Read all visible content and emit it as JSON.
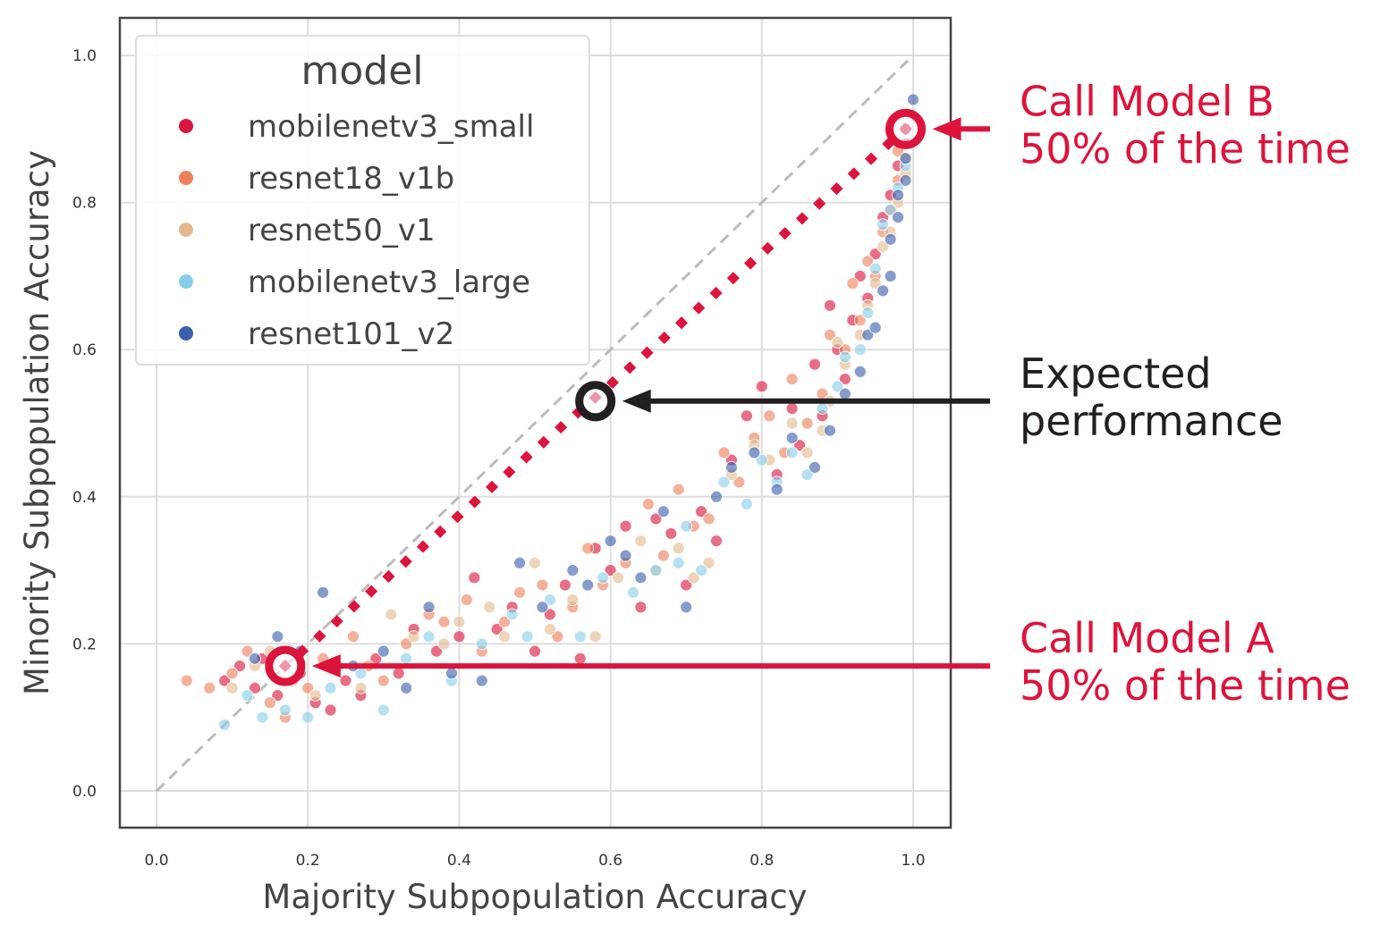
{
  "chart_data": {
    "type": "scatter",
    "xlabel": "Majority Subpopulation Accuracy",
    "ylabel": "Minority Subpopulation Accuracy",
    "xlim": [
      -0.05,
      1.05
    ],
    "ylim": [
      -0.05,
      1.05
    ],
    "xticks": [
      "0.0",
      "0.2",
      "0.4",
      "0.6",
      "0.8",
      "1.0"
    ],
    "yticks": [
      "0.0",
      "0.2",
      "0.4",
      "0.6",
      "0.8",
      "1.0"
    ],
    "grid": true,
    "legend": {
      "title": "model",
      "placement": "top-left"
    },
    "series": [
      {
        "name": "mobilenetv3_small",
        "color": "#dc143c",
        "points": [
          [
            0.09,
            0.15
          ],
          [
            0.11,
            0.17
          ],
          [
            0.13,
            0.14
          ],
          [
            0.14,
            0.18
          ],
          [
            0.16,
            0.13
          ],
          [
            0.19,
            0.16
          ],
          [
            0.21,
            0.12
          ],
          [
            0.23,
            0.11
          ],
          [
            0.25,
            0.15
          ],
          [
            0.27,
            0.13
          ],
          [
            0.29,
            0.18
          ],
          [
            0.32,
            0.16
          ],
          [
            0.34,
            0.22
          ],
          [
            0.37,
            0.19
          ],
          [
            0.4,
            0.21
          ],
          [
            0.42,
            0.29
          ],
          [
            0.45,
            0.22
          ],
          [
            0.47,
            0.25
          ],
          [
            0.5,
            0.19
          ],
          [
            0.52,
            0.24
          ],
          [
            0.54,
            0.28
          ],
          [
            0.56,
            0.18
          ],
          [
            0.58,
            0.33
          ],
          [
            0.6,
            0.3
          ],
          [
            0.62,
            0.36
          ],
          [
            0.64,
            0.25
          ],
          [
            0.66,
            0.37
          ],
          [
            0.68,
            0.35
          ],
          [
            0.7,
            0.28
          ],
          [
            0.72,
            0.38
          ],
          [
            0.74,
            0.34
          ],
          [
            0.76,
            0.45
          ],
          [
            0.78,
            0.51
          ],
          [
            0.8,
            0.55
          ],
          [
            0.82,
            0.43
          ],
          [
            0.84,
            0.52
          ],
          [
            0.85,
            0.47
          ],
          [
            0.87,
            0.58
          ],
          [
            0.88,
            0.51
          ],
          [
            0.89,
            0.66
          ],
          [
            0.9,
            0.6
          ],
          [
            0.91,
            0.56
          ],
          [
            0.92,
            0.64
          ],
          [
            0.93,
            0.7
          ],
          [
            0.94,
            0.67
          ],
          [
            0.95,
            0.73
          ],
          [
            0.96,
            0.78
          ],
          [
            0.97,
            0.81
          ],
          [
            0.98,
            0.85
          ],
          [
            0.99,
            0.88
          ]
        ]
      },
      {
        "name": "resnet18_v1b",
        "color": "#ef7f5b",
        "points": [
          [
            0.04,
            0.15
          ],
          [
            0.07,
            0.14
          ],
          [
            0.1,
            0.16
          ],
          [
            0.12,
            0.19
          ],
          [
            0.15,
            0.12
          ],
          [
            0.17,
            0.1
          ],
          [
            0.2,
            0.14
          ],
          [
            0.22,
            0.18
          ],
          [
            0.26,
            0.21
          ],
          [
            0.28,
            0.17
          ],
          [
            0.3,
            0.15
          ],
          [
            0.33,
            0.2
          ],
          [
            0.36,
            0.24
          ],
          [
            0.38,
            0.23
          ],
          [
            0.41,
            0.26
          ],
          [
            0.43,
            0.19
          ],
          [
            0.46,
            0.23
          ],
          [
            0.48,
            0.27
          ],
          [
            0.51,
            0.28
          ],
          [
            0.53,
            0.21
          ],
          [
            0.55,
            0.25
          ],
          [
            0.57,
            0.33
          ],
          [
            0.59,
            0.28
          ],
          [
            0.62,
            0.31
          ],
          [
            0.65,
            0.39
          ],
          [
            0.67,
            0.32
          ],
          [
            0.69,
            0.41
          ],
          [
            0.71,
            0.36
          ],
          [
            0.73,
            0.37
          ],
          [
            0.75,
            0.46
          ],
          [
            0.77,
            0.42
          ],
          [
            0.79,
            0.48
          ],
          [
            0.81,
            0.51
          ],
          [
            0.83,
            0.46
          ],
          [
            0.84,
            0.56
          ],
          [
            0.86,
            0.5
          ],
          [
            0.88,
            0.54
          ],
          [
            0.89,
            0.62
          ],
          [
            0.91,
            0.6
          ],
          [
            0.92,
            0.69
          ],
          [
            0.93,
            0.64
          ],
          [
            0.94,
            0.72
          ],
          [
            0.95,
            0.7
          ],
          [
            0.96,
            0.76
          ],
          [
            0.97,
            0.79
          ],
          [
            0.98,
            0.83
          ],
          [
            0.98,
            0.87
          ],
          [
            0.99,
            0.9
          ]
        ]
      },
      {
        "name": "resnet50_v1",
        "color": "#e3b98c",
        "points": [
          [
            0.1,
            0.14
          ],
          [
            0.13,
            0.17
          ],
          [
            0.15,
            0.19
          ],
          [
            0.18,
            0.15
          ],
          [
            0.21,
            0.13
          ],
          [
            0.24,
            0.17
          ],
          [
            0.27,
            0.14
          ],
          [
            0.31,
            0.24
          ],
          [
            0.34,
            0.21
          ],
          [
            0.38,
            0.2
          ],
          [
            0.4,
            0.23
          ],
          [
            0.44,
            0.25
          ],
          [
            0.46,
            0.21
          ],
          [
            0.5,
            0.31
          ],
          [
            0.52,
            0.22
          ],
          [
            0.55,
            0.26
          ],
          [
            0.58,
            0.21
          ],
          [
            0.61,
            0.29
          ],
          [
            0.64,
            0.34
          ],
          [
            0.66,
            0.3
          ],
          [
            0.69,
            0.33
          ],
          [
            0.71,
            0.29
          ],
          [
            0.73,
            0.31
          ],
          [
            0.76,
            0.43
          ],
          [
            0.79,
            0.47
          ],
          [
            0.81,
            0.45
          ],
          [
            0.84,
            0.5
          ],
          [
            0.86,
            0.46
          ],
          [
            0.88,
            0.49
          ],
          [
            0.89,
            0.53
          ],
          [
            0.9,
            0.61
          ],
          [
            0.91,
            0.58
          ],
          [
            0.93,
            0.62
          ],
          [
            0.94,
            0.66
          ],
          [
            0.95,
            0.69
          ],
          [
            0.96,
            0.74
          ],
          [
            0.97,
            0.76
          ],
          [
            0.98,
            0.8
          ],
          [
            0.99,
            0.84
          ],
          [
            0.99,
            0.86
          ]
        ]
      },
      {
        "name": "mobilenetv3_large",
        "color": "#87ceeb",
        "points": [
          [
            0.09,
            0.09
          ],
          [
            0.12,
            0.13
          ],
          [
            0.14,
            0.1
          ],
          [
            0.17,
            0.11
          ],
          [
            0.2,
            0.1
          ],
          [
            0.23,
            0.14
          ],
          [
            0.27,
            0.16
          ],
          [
            0.3,
            0.11
          ],
          [
            0.33,
            0.18
          ],
          [
            0.36,
            0.21
          ],
          [
            0.39,
            0.15
          ],
          [
            0.43,
            0.2
          ],
          [
            0.47,
            0.24
          ],
          [
            0.49,
            0.21
          ],
          [
            0.52,
            0.26
          ],
          [
            0.56,
            0.21
          ],
          [
            0.59,
            0.29
          ],
          [
            0.63,
            0.27
          ],
          [
            0.66,
            0.3
          ],
          [
            0.69,
            0.31
          ],
          [
            0.7,
            0.36
          ],
          [
            0.72,
            0.3
          ],
          [
            0.75,
            0.42
          ],
          [
            0.78,
            0.39
          ],
          [
            0.8,
            0.45
          ],
          [
            0.82,
            0.42
          ],
          [
            0.84,
            0.46
          ],
          [
            0.86,
            0.43
          ],
          [
            0.88,
            0.52
          ],
          [
            0.9,
            0.55
          ],
          [
            0.91,
            0.59
          ],
          [
            0.93,
            0.6
          ],
          [
            0.94,
            0.65
          ],
          [
            0.95,
            0.71
          ],
          [
            0.96,
            0.77
          ],
          [
            0.97,
            0.79
          ],
          [
            0.98,
            0.82
          ],
          [
            0.99,
            0.85
          ]
        ]
      },
      {
        "name": "resnet101_v2",
        "color": "#3a5fad",
        "points": [
          [
            0.13,
            0.18
          ],
          [
            0.16,
            0.21
          ],
          [
            0.19,
            0.19
          ],
          [
            0.22,
            0.27
          ],
          [
            0.26,
            0.17
          ],
          [
            0.3,
            0.19
          ],
          [
            0.33,
            0.14
          ],
          [
            0.36,
            0.25
          ],
          [
            0.39,
            0.16
          ],
          [
            0.43,
            0.15
          ],
          [
            0.48,
            0.31
          ],
          [
            0.51,
            0.25
          ],
          [
            0.55,
            0.3
          ],
          [
            0.57,
            0.28
          ],
          [
            0.6,
            0.34
          ],
          [
            0.62,
            0.32
          ],
          [
            0.64,
            0.29
          ],
          [
            0.67,
            0.38
          ],
          [
            0.7,
            0.25
          ],
          [
            0.74,
            0.4
          ],
          [
            0.76,
            0.44
          ],
          [
            0.79,
            0.46
          ],
          [
            0.82,
            0.41
          ],
          [
            0.84,
            0.48
          ],
          [
            0.87,
            0.44
          ],
          [
            0.89,
            0.49
          ],
          [
            0.91,
            0.54
          ],
          [
            0.93,
            0.57
          ],
          [
            0.94,
            0.62
          ],
          [
            0.95,
            0.63
          ],
          [
            0.96,
            0.68
          ],
          [
            0.97,
            0.7
          ],
          [
            0.97,
            0.75
          ],
          [
            0.98,
            0.78
          ],
          [
            0.98,
            0.81
          ],
          [
            0.99,
            0.83
          ],
          [
            0.99,
            0.86
          ],
          [
            0.99,
            0.9
          ],
          [
            1.0,
            0.94
          ]
        ]
      }
    ],
    "reference_line": {
      "style": "dashed",
      "color": "#bbbbbb",
      "from": [
        0.0,
        0.0
      ],
      "to": [
        1.0,
        1.0
      ]
    },
    "mixture_line": {
      "style": "dotted",
      "color": "#dc143c",
      "from": [
        0.17,
        0.17
      ],
      "to": [
        0.99,
        0.9
      ]
    },
    "markers": [
      {
        "id": "model_a",
        "x": 0.17,
        "y": 0.17,
        "color": "#dc143c"
      },
      {
        "id": "expected",
        "x": 0.58,
        "y": 0.53,
        "color": "#231f20"
      },
      {
        "id": "model_b",
        "x": 0.99,
        "y": 0.9,
        "color": "#dc143c"
      }
    ],
    "annotations": [
      {
        "target": "model_b",
        "color": "#dc143c",
        "lines": [
          "Call Model B",
          "50% of the time"
        ]
      },
      {
        "target": "expected",
        "color": "#231f20",
        "lines": [
          "Expected",
          "performance"
        ]
      },
      {
        "target": "model_a",
        "color": "#dc143c",
        "lines": [
          "Call Model A",
          "50% of the time"
        ]
      }
    ]
  }
}
